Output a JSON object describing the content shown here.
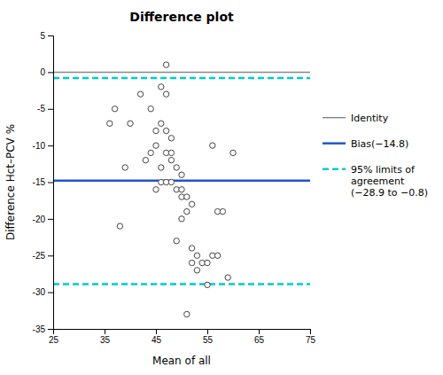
{
  "chart_data": {
    "type": "scatter",
    "title": "Difference plot",
    "xlabel": "Mean of all",
    "ylabel": "Difference Hct–PCV %",
    "xlim": [
      25,
      75
    ],
    "ylim": [
      -35,
      5
    ],
    "xticks": [
      25,
      35,
      45,
      55,
      65,
      75
    ],
    "yticks": [
      -35,
      -30,
      -25,
      -20,
      -15,
      -10,
      -5,
      0,
      5
    ],
    "grid": false,
    "legend": "right",
    "series": [
      {
        "type": "scatter",
        "color": "#444444",
        "marker": "circle",
        "x": [
          36,
          37,
          38,
          39,
          40,
          42,
          43,
          44,
          44,
          45,
          45,
          45,
          46,
          46,
          46,
          46,
          47,
          47,
          47,
          47,
          47,
          48,
          48,
          48,
          48,
          49,
          49,
          49,
          50,
          50,
          50,
          50,
          51,
          51,
          51,
          52,
          52,
          52,
          53,
          53,
          54,
          55,
          55,
          56,
          56,
          57,
          57,
          58,
          59,
          60
        ],
        "values": [
          -7,
          -5,
          -21,
          -13,
          -7,
          -3,
          -12,
          -5,
          -11,
          -8,
          -10,
          -16,
          -2,
          -7,
          -13,
          -15,
          1,
          -3,
          -8,
          -11,
          -15,
          -9,
          -11,
          -12,
          -15,
          -13,
          -16,
          -23,
          -14,
          -16,
          -17,
          -20,
          -17,
          -19,
          -33,
          -18,
          -24,
          -26,
          -25,
          -27,
          -26,
          -26,
          -29,
          -10,
          -25,
          -25,
          -19,
          -19,
          -28,
          -11
        ]
      },
      {
        "type": "hline",
        "name": "Identity",
        "color": "#888888",
        "line_style": "solid",
        "values": [
          0
        ]
      },
      {
        "type": "hline",
        "name": "Bias(−14.8)",
        "color": "#2255cc",
        "line_style": "solid",
        "values": [
          -14.8
        ]
      },
      {
        "type": "hline",
        "name": "95% limits of\nagreement\n(−28.9 to −0.8)",
        "color": "#00cccc",
        "line_style": "dashed",
        "values": [
          -28.9,
          -0.8
        ]
      }
    ]
  }
}
